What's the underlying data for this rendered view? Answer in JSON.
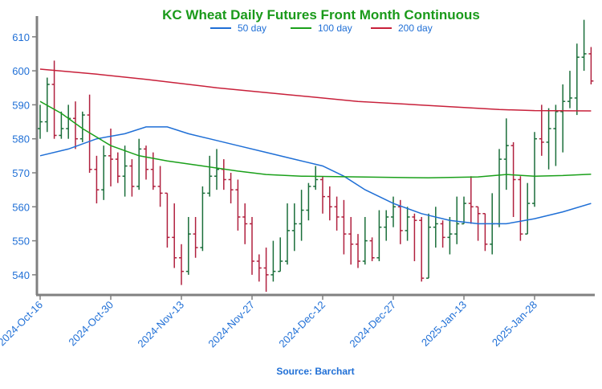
{
  "chart_data": {
    "type": "ohlc",
    "title": "KC Wheat Daily Futures Front Month Continuous",
    "source": "Source: Barchart",
    "categories": [
      "2024-Oct-16",
      null,
      null,
      null,
      null,
      null,
      null,
      null,
      null,
      null,
      "2024-Oct-30",
      null,
      null,
      null,
      null,
      null,
      null,
      null,
      null,
      null,
      "2024-Nov-13",
      null,
      null,
      null,
      null,
      null,
      null,
      null,
      null,
      null,
      "2024-Nov-27",
      null,
      null,
      null,
      null,
      null,
      null,
      null,
      null,
      null,
      "2024-Dec-12",
      null,
      null,
      null,
      null,
      null,
      null,
      null,
      null,
      null,
      "2024-Dec-27",
      null,
      null,
      null,
      null,
      null,
      null,
      null,
      null,
      null,
      "2025-Jan-13",
      null,
      null,
      null,
      null,
      null,
      null,
      null,
      null,
      null,
      "2025-Jan-28",
      null,
      null,
      null,
      null,
      null,
      null,
      null,
      null
    ],
    "open": [
      583,
      585,
      596,
      581,
      583,
      586,
      580,
      587,
      571,
      565,
      575,
      574,
      569,
      572,
      566,
      577,
      571,
      566,
      564,
      551,
      545,
      541,
      552,
      548,
      564,
      569,
      571,
      568,
      565,
      557,
      555,
      544,
      542,
      540,
      541,
      544,
      553,
      555,
      559,
      566,
      568,
      563,
      560,
      557,
      552,
      549,
      544,
      550,
      545,
      554,
      557,
      560,
      553,
      557,
      556,
      539,
      554,
      555,
      551,
      552,
      555,
      561,
      560,
      558,
      549,
      555,
      574,
      578,
      568,
      552,
      561,
      580,
      579,
      583,
      588,
      591,
      592,
      604,
      605
    ],
    "high": [
      590,
      598,
      603,
      588,
      590,
      591,
      588,
      593,
      575,
      578,
      583,
      576,
      578,
      574,
      580,
      578,
      576,
      572,
      564,
      561,
      549,
      557,
      557,
      566,
      575,
      577,
      574,
      570,
      568,
      561,
      557,
      546,
      548,
      550,
      551,
      561,
      561,
      565,
      567,
      572,
      569,
      566,
      563,
      562,
      557,
      552,
      557,
      551,
      559,
      559,
      563,
      562,
      560,
      558,
      557,
      558,
      560,
      556,
      557,
      563,
      563,
      569,
      560,
      558,
      564,
      577,
      586,
      579,
      569,
      567,
      582,
      590,
      589,
      590,
      596,
      600,
      608,
      615,
      607
    ],
    "low": [
      580,
      582,
      580,
      580,
      580,
      577,
      579,
      570,
      561,
      562,
      566,
      567,
      563,
      563,
      565,
      568,
      565,
      560,
      548,
      542,
      537,
      540,
      545,
      547,
      563,
      565,
      565,
      561,
      553,
      549,
      540,
      538,
      535,
      538,
      541,
      543,
      547,
      550,
      556,
      565,
      558,
      556,
      553,
      546,
      543,
      542,
      543,
      544,
      544,
      550,
      554,
      549,
      550,
      544,
      538,
      539,
      548,
      548,
      546,
      549,
      555,
      555,
      550,
      547,
      546,
      554,
      565,
      557,
      550,
      552,
      560,
      575,
      571,
      572,
      576,
      589,
      587,
      600,
      596
    ],
    "close": [
      585,
      596,
      581,
      583,
      586,
      580,
      587,
      571,
      565,
      575,
      574,
      569,
      572,
      566,
      577,
      571,
      566,
      564,
      551,
      545,
      541,
      552,
      548,
      564,
      569,
      571,
      568,
      565,
      557,
      555,
      544,
      542,
      540,
      541,
      544,
      553,
      555,
      559,
      566,
      568,
      563,
      560,
      557,
      552,
      549,
      544,
      550,
      545,
      554,
      557,
      560,
      553,
      557,
      556,
      539,
      554,
      555,
      551,
      552,
      555,
      561,
      560,
      558,
      549,
      555,
      574,
      578,
      568,
      552,
      561,
      580,
      579,
      583,
      588,
      591,
      592,
      604,
      605,
      597
    ],
    "up_color": "#1a6e3a",
    "down_color": "#b0203e",
    "series": [
      {
        "name": "50 day",
        "color": "#1f6fd6",
        "x": [
          0,
          4,
          8,
          12,
          15,
          18,
          21,
          24,
          28,
          32,
          36,
          40,
          43,
          46,
          50,
          54,
          58,
          62,
          66,
          70,
          74,
          78
        ],
        "values": [
          575,
          577,
          580,
          581.5,
          583.5,
          583.5,
          581.5,
          580,
          578,
          576,
          574,
          572,
          569,
          565,
          561,
          558,
          556,
          555,
          555,
          556.5,
          558.5,
          561
        ]
      },
      {
        "name": "100 day",
        "color": "#1aa01a",
        "x": [
          0,
          3,
          6,
          10,
          14,
          18,
          23,
          28,
          32,
          37,
          45,
          55,
          62,
          66,
          70,
          74,
          78
        ],
        "values": [
          591,
          587.5,
          583,
          578,
          575,
          573.5,
          572,
          570.5,
          569.5,
          569,
          568.8,
          568.5,
          568.8,
          569.5,
          569,
          569.2,
          569.6
        ]
      },
      {
        "name": "200 day",
        "color": "#c8203a",
        "x": [
          0,
          8,
          15,
          25,
          35,
          45,
          55,
          65,
          70,
          78
        ],
        "values": [
          600.5,
          599,
          597.5,
          595,
          593,
          591,
          589.8,
          588.6,
          588.3,
          588.2
        ]
      }
    ],
    "ylim": [
      534.3,
      616.1
    ],
    "yticks": [
      540,
      550,
      560,
      570,
      580,
      590,
      600,
      610
    ]
  }
}
